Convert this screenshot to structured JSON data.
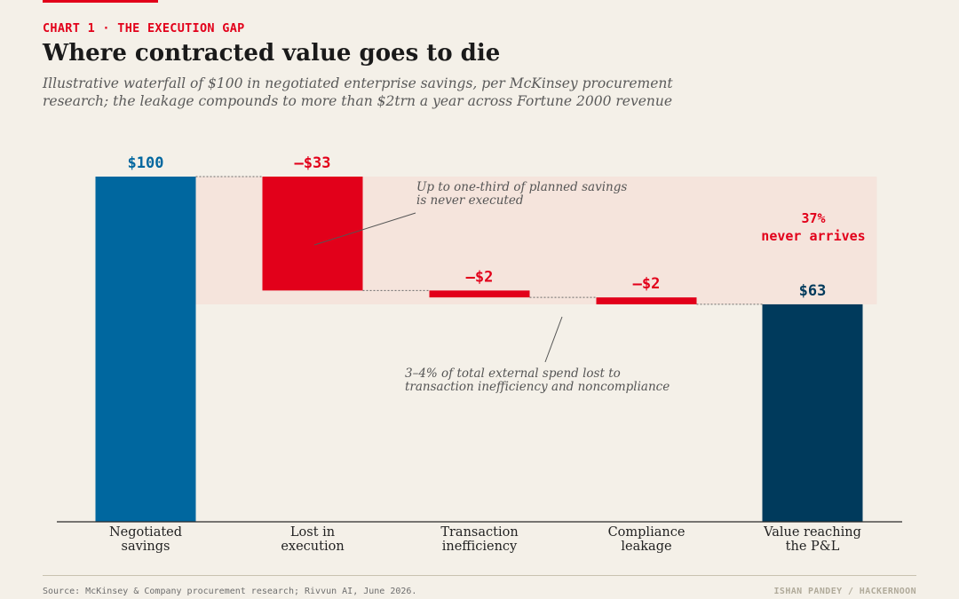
{
  "header": {
    "kicker": "CHART 1 · THE EXECUTION GAP",
    "title": "Where contracted value goes to die",
    "subtitle": "Illustrative waterfall of $100 in negotiated enterprise savings, per McKinsey procurement research; the leakage compounds to more than $2trn a year across Fortune 2000 revenue"
  },
  "chart_data": {
    "type": "bar",
    "subtype": "waterfall",
    "categories": [
      [
        "Negotiated",
        "savings"
      ],
      [
        "Lost in",
        "execution"
      ],
      [
        "Transaction",
        "inefficiency"
      ],
      [
        "Compliance",
        "leakage"
      ],
      [
        "Value reaching",
        "the P&L"
      ]
    ],
    "values": [
      100,
      -33,
      -2,
      -2,
      63
    ],
    "kinds": [
      "total",
      "loss",
      "loss",
      "loss",
      "total"
    ],
    "data_labels": [
      "$100",
      "–$33",
      "–$2",
      "–$2",
      "$63"
    ],
    "ylim": [
      0,
      100
    ],
    "grid": false,
    "colors": {
      "start_total": "#00679f",
      "loss": "#e2001a",
      "end_total": "#003a5c",
      "gap_band": "#f5e4dc"
    },
    "gap_callout": [
      "37%",
      "never arrives"
    ],
    "annotations": [
      {
        "lines": [
          "Up to one-third of planned savings",
          "is never executed"
        ],
        "target_bar": 1
      },
      {
        "lines": [
          "3–4% of total external spend lost to",
          "transaction inefficiency and noncompliance"
        ],
        "target_bar": 2
      }
    ]
  },
  "footer": {
    "source": "Source: McKinsey & Company procurement research; Rivvun AI, June 2026.",
    "credit": "ISHAN PANDEY / HACKERNOON"
  }
}
